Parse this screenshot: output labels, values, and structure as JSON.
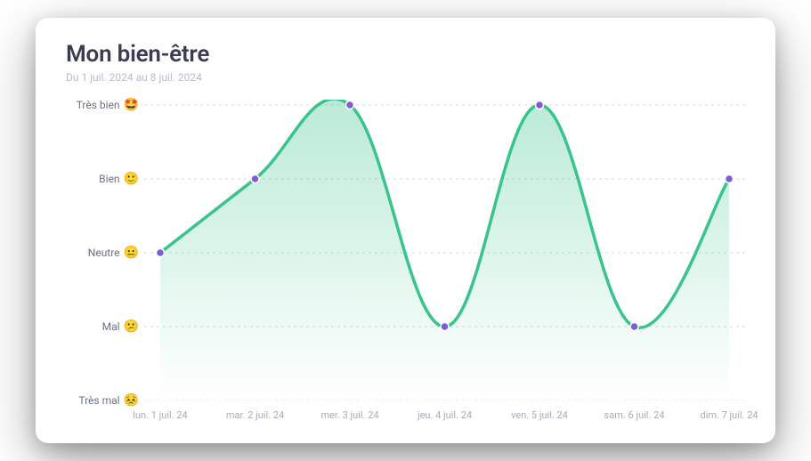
{
  "header": {
    "title": "Mon bien-être",
    "subtitle": "Du 1 juil. 2024 au 8 juil. 2024"
  },
  "chart": {
    "type": "line",
    "background_color": "#ffffff",
    "grid_color": "#d6d9e3",
    "grid_dash": "3 4",
    "line_color": "#38c48b",
    "line_width": 3.5,
    "area_gradient_top": "rgba(56,196,139,0.35)",
    "area_gradient_bottom": "rgba(56,196,139,0.0)",
    "marker_fill": "#7b5ed6",
    "marker_stroke": "#ffffff",
    "marker_radius": 4.5,
    "label_color": "#6b6f84",
    "xlabel_color": "#a7acbd",
    "label_fontsize": 12,
    "xlabel_fontsize": 11,
    "curve_smoothing": 0.38,
    "y_levels": [
      {
        "value": 5,
        "label": "Très bien",
        "emoji": "🤩"
      },
      {
        "value": 4,
        "label": "Bien",
        "emoji": "🙂"
      },
      {
        "value": 3,
        "label": "Neutre",
        "emoji": "😐"
      },
      {
        "value": 2,
        "label": "Mal",
        "emoji": "😕"
      },
      {
        "value": 1,
        "label": "Très mal",
        "emoji": "😣"
      }
    ],
    "x_categories": [
      "lun. 1 juil. 24",
      "mar. 2 juil. 24",
      "mer. 3 juil. 24",
      "jeu. 4 juil. 24",
      "ven. 5 juil. 24",
      "sam. 6 juil. 24",
      "dim. 7 juil. 24"
    ],
    "values": [
      3,
      4,
      5,
      2,
      5,
      2,
      4
    ],
    "ylim": [
      1,
      5
    ]
  }
}
